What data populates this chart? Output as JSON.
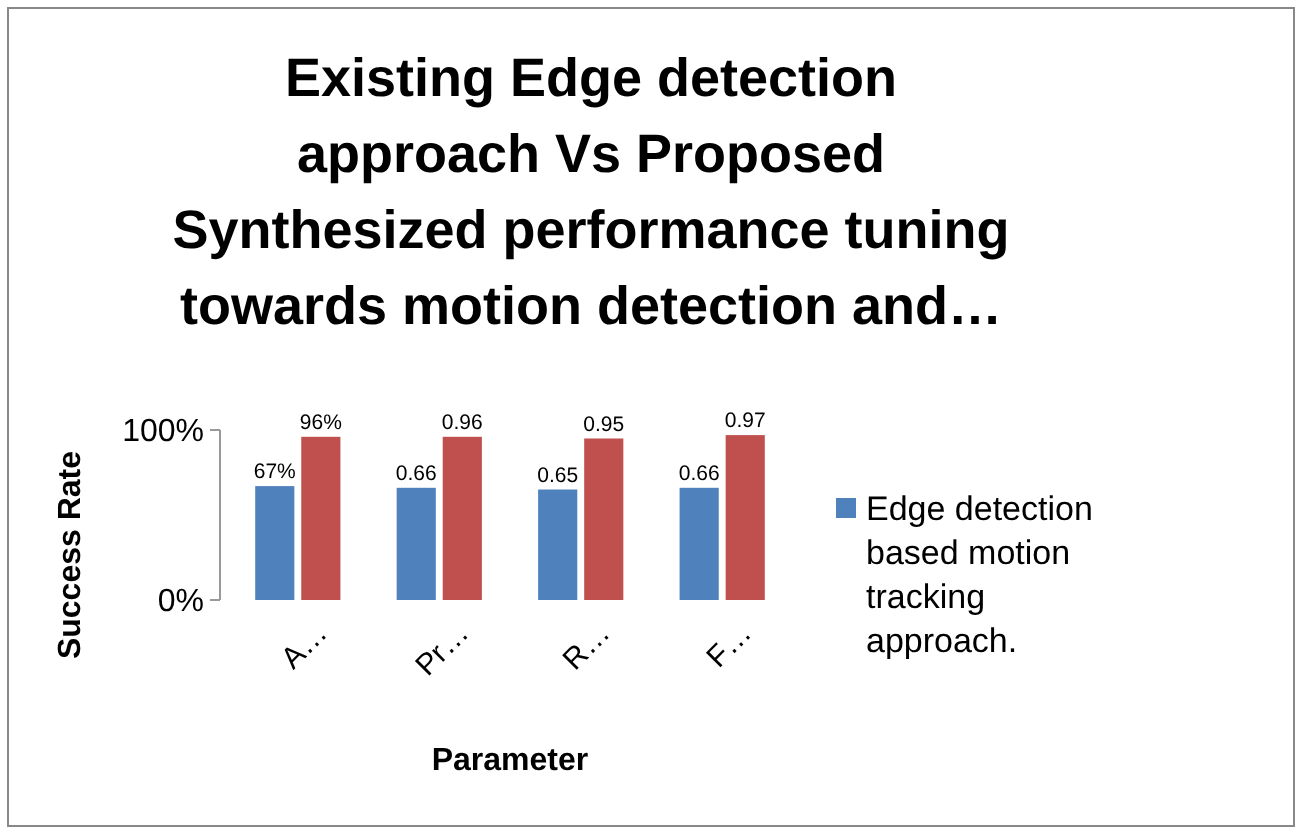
{
  "chart_data": {
    "type": "bar",
    "title": "Existing Edge detection approach Vs Proposed Synthesized performance tuning towards motion detection and…",
    "xlabel": "Parameter",
    "ylabel": "Success Rate",
    "categories": [
      "A…",
      "Pr…",
      "R…",
      "F…"
    ],
    "series": [
      {
        "name": "Edge detection based motion tracking approach.",
        "color": "#4f81bd",
        "values": [
          0.67,
          0.66,
          0.65,
          0.66
        ],
        "value_labels": [
          "67%",
          "0.66",
          "0.65",
          "0.66"
        ]
      },
      {
        "color": "#c0504d",
        "values": [
          0.96,
          0.96,
          0.95,
          0.97
        ],
        "value_labels": [
          "96%",
          "0.96",
          "0.95",
          "0.97"
        ]
      }
    ],
    "ylim": [
      0,
      1
    ],
    "yticks": [
      {
        "value": 0,
        "label": "0%"
      },
      {
        "value": 1,
        "label": "100%"
      }
    ],
    "legend": "right"
  }
}
